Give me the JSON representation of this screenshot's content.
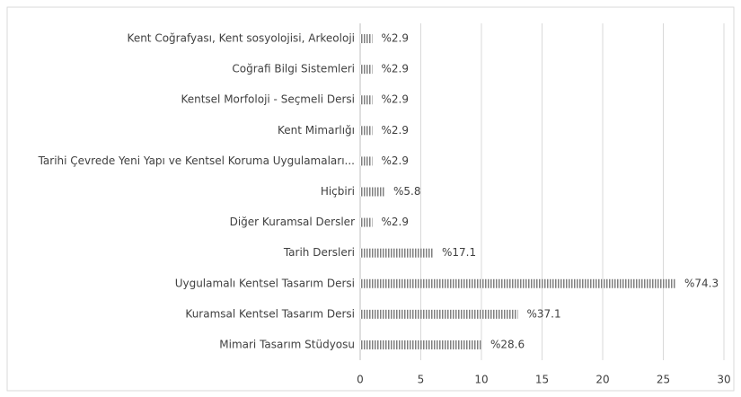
{
  "chart_data": {
    "type": "barh",
    "categories": [
      "Kent Coğrafyası, Kent sosyolojisi, Arkeoloji",
      "Coğrafi Bilgi Sistemleri",
      "Kentsel Morfoloji - Seçmeli Dersi",
      "Kent Mimarlığı",
      "Tarihi Çevrede Yeni Yapı ve Kentsel Koruma Uygulamaları...",
      "Hiçbiri",
      "Diğer Kuramsal Dersler",
      "Tarih Dersleri",
      "Uygulamalı Kentsel Tasarım Dersi",
      "Kuramsal Kentsel Tasarım Dersi",
      "Mimari Tasarım Stüdyosu"
    ],
    "values": [
      1,
      1,
      1,
      1,
      1,
      2,
      1,
      6,
      26,
      13,
      10
    ],
    "value_labels": [
      "%2.9",
      "%2.9",
      "%2.9",
      "%2.9",
      "%2.9",
      "%5.8",
      "%2.9",
      "%17.1",
      "%74.3",
      "%37.1",
      "%28.6"
    ],
    "color": "#7f7f7f",
    "xlim": [
      0,
      30
    ],
    "xticks": [
      0,
      5,
      10,
      15,
      20,
      25,
      30
    ],
    "grid": true
  }
}
